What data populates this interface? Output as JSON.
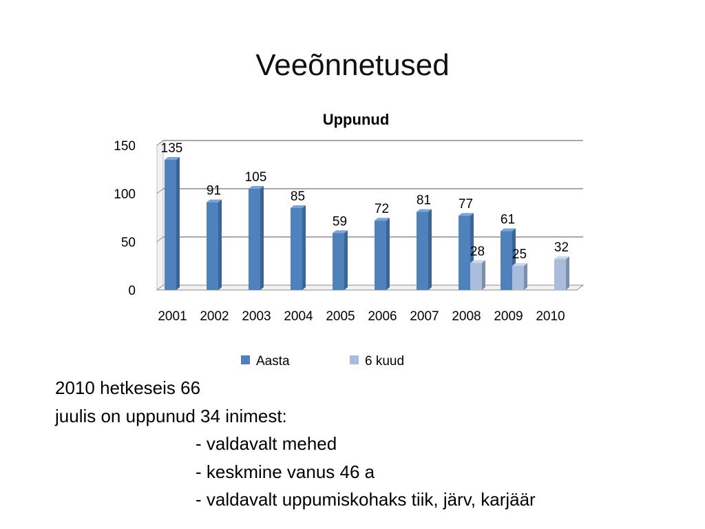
{
  "slide": {
    "title": "Veeõnnetused",
    "lines": [
      "2010 hetkeseis 66",
      "juulis on uppunud 34 inimest:",
      "- valdavalt mehed",
      "- keskmine vanus 46 a",
      "- valdavalt uppumiskohaks tiik, järv, karjäär"
    ]
  },
  "chart_data": {
    "type": "bar",
    "title": "Uppunud",
    "xlabel": "",
    "ylabel": "",
    "categories": [
      "2001",
      "2002",
      "2003",
      "2004",
      "2005",
      "2006",
      "2007",
      "2008",
      "2009",
      "2010"
    ],
    "series": [
      {
        "name": "Aasta",
        "color": "#4f81bd",
        "side": "#3b6596",
        "top": "#7da4d6",
        "values": [
          135,
          91,
          105,
          85,
          59,
          72,
          81,
          77,
          61,
          null
        ]
      },
      {
        "name": "6 kuud",
        "color": "#a9bcdb",
        "side": "#7c8ea9",
        "top": "#c9d6ea",
        "values": [
          null,
          null,
          null,
          null,
          null,
          null,
          null,
          28,
          25,
          32
        ]
      }
    ],
    "ylim": [
      0,
      150
    ],
    "yticks": [
      0,
      50,
      100,
      150
    ],
    "grid": true,
    "legend": "bottom",
    "style": "3d-column"
  }
}
